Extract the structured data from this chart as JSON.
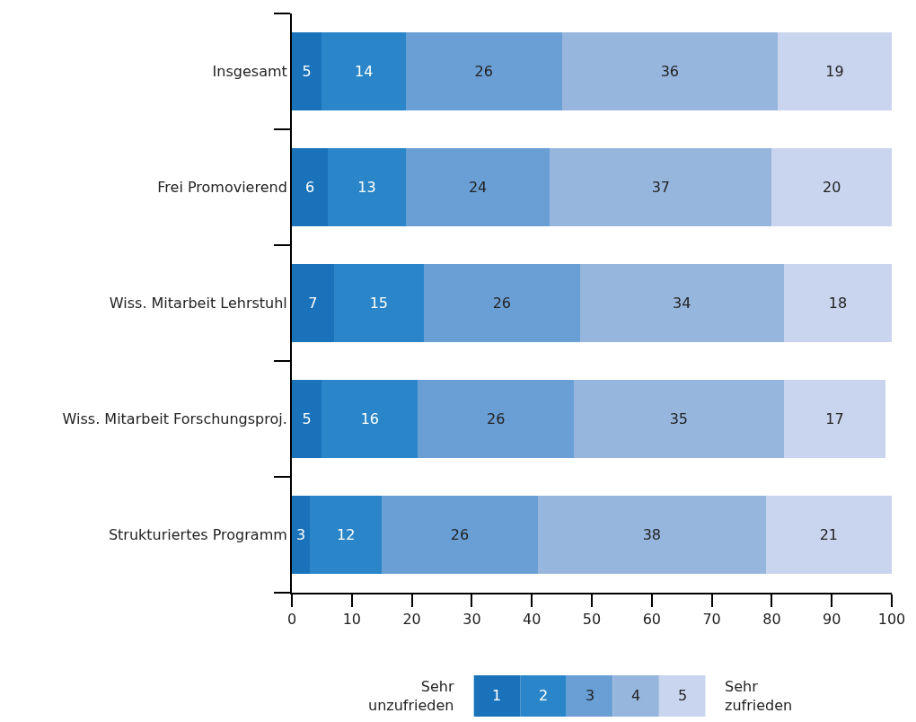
{
  "chart_data": {
    "type": "bar",
    "orientation": "horizontal",
    "stacked": true,
    "data_labels": true,
    "legend": "bottom",
    "categories": [
      "Insgesamt",
      "Frei Promovierend",
      "Wiss. Mitarbeit Lehrstuhl",
      "Wiss. Mitarbeit Forschungsproj.",
      "Strukturiertes Programm"
    ],
    "series": [
      {
        "name": "1",
        "color": "#1a72bb",
        "values": [
          5,
          6,
          7,
          5,
          3
        ]
      },
      {
        "name": "2",
        "color": "#2a86c8",
        "values": [
          14,
          13,
          15,
          16,
          12
        ]
      },
      {
        "name": "3",
        "color": "#6a9fd6",
        "values": [
          26,
          24,
          26,
          26,
          26
        ]
      },
      {
        "name": "4",
        "color": "#97b6de",
        "values": [
          36,
          37,
          34,
          35,
          38
        ]
      },
      {
        "name": "5",
        "color": "#c9d5ee",
        "values": [
          19,
          20,
          18,
          17,
          21
        ]
      }
    ],
    "xlim": [
      0,
      100
    ],
    "xticks": [
      0,
      10,
      20,
      30,
      40,
      50,
      60,
      70,
      80,
      90,
      100
    ],
    "annotations": [
      "Sehr unzufrieden",
      "Sehr zufrieden"
    ]
  }
}
